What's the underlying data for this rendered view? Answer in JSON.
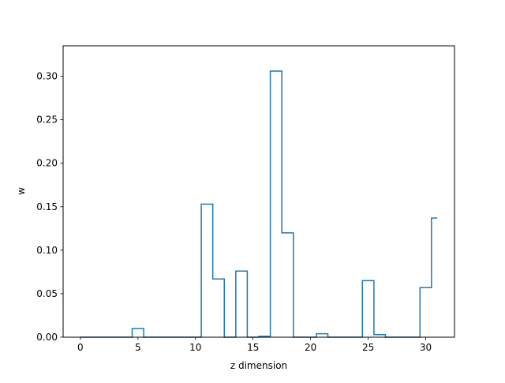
{
  "chart_data": {
    "type": "line",
    "subtype": "step",
    "step_where": "mid",
    "title": "",
    "xlabel": "z dimension",
    "ylabel": "w",
    "xlim": [
      -1.5,
      32.5
    ],
    "ylim": [
      0,
      0.335
    ],
    "xticks": [
      0,
      5,
      10,
      15,
      20,
      25,
      30
    ],
    "yticks": [
      0.0,
      0.05,
      0.1,
      0.15,
      0.2,
      0.25,
      0.3
    ],
    "ytick_labels": [
      "0.00",
      "0.05",
      "0.10",
      "0.15",
      "0.20",
      "0.25",
      "0.30"
    ],
    "grid": false,
    "series": [
      {
        "color": "#1f77b4",
        "x": [
          0,
          1,
          2,
          3,
          4,
          5,
          6,
          7,
          8,
          9,
          10,
          11,
          12,
          13,
          14,
          15,
          16,
          17,
          18,
          19,
          20,
          21,
          22,
          23,
          24,
          25,
          26,
          27,
          28,
          29,
          30,
          31
        ],
        "values": [
          0,
          0,
          0,
          0,
          0,
          0.01,
          0,
          0,
          0,
          0,
          0,
          0.153,
          0.067,
          0,
          0.076,
          0,
          0.001,
          0.306,
          0.12,
          0,
          0,
          0.004,
          0,
          0,
          0,
          0.065,
          0.003,
          0,
          0,
          0,
          0.057,
          0.137
        ]
      }
    ]
  }
}
